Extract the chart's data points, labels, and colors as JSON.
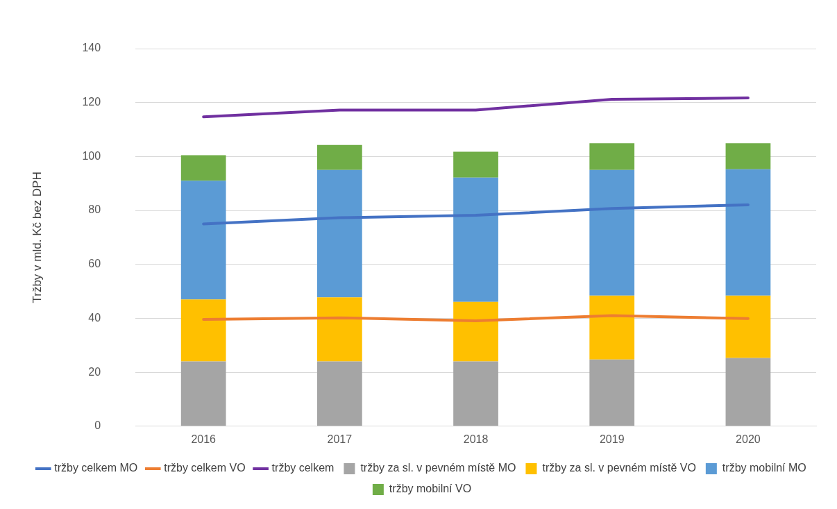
{
  "chart_data": {
    "type": "bar",
    "stacked": true,
    "ylabel": "Tržby v mld. Kč bez DPH",
    "categories": [
      "2016",
      "2017",
      "2018",
      "2019",
      "2020"
    ],
    "ylim": [
      0,
      140
    ],
    "yticks": [
      0,
      20,
      40,
      60,
      80,
      100,
      120,
      140
    ],
    "grid": "y",
    "legend": "bottom",
    "marker": "none",
    "series": [
      {
        "name": "tržby za sl. v pevném místě MO",
        "color": "#a5a5a5",
        "values": [
          24,
          24,
          24,
          24.7,
          25.3
        ]
      },
      {
        "name": "tržby za sl. v pevném místě VO",
        "color": "#ffc000",
        "values": [
          23,
          23.8,
          22.1,
          23.7,
          23.1
        ]
      },
      {
        "name": "tržby mobilní MO",
        "color": "#5b9bd5",
        "values": [
          44,
          47.2,
          46.1,
          46.6,
          46.9
        ]
      },
      {
        "name": "tržby mobilní VO",
        "color": "#70ad47",
        "values": [
          9.5,
          9.3,
          9.6,
          9.9,
          9.6
        ]
      },
      {
        "name": "tržby celkem MO",
        "type": "line",
        "color": "#4472c4",
        "values": [
          75,
          77.3,
          78.2,
          80.7,
          82.1
        ]
      },
      {
        "name": "tržby celkem VO",
        "type": "line",
        "color": "#ed7d31",
        "values": [
          39.6,
          40.2,
          39.1,
          41,
          39.9
        ]
      },
      {
        "name": "tržby celkem",
        "type": "line",
        "color": "#7030a0",
        "values": [
          114.7,
          117.2,
          117.2,
          121.2,
          121.7
        ]
      }
    ]
  }
}
